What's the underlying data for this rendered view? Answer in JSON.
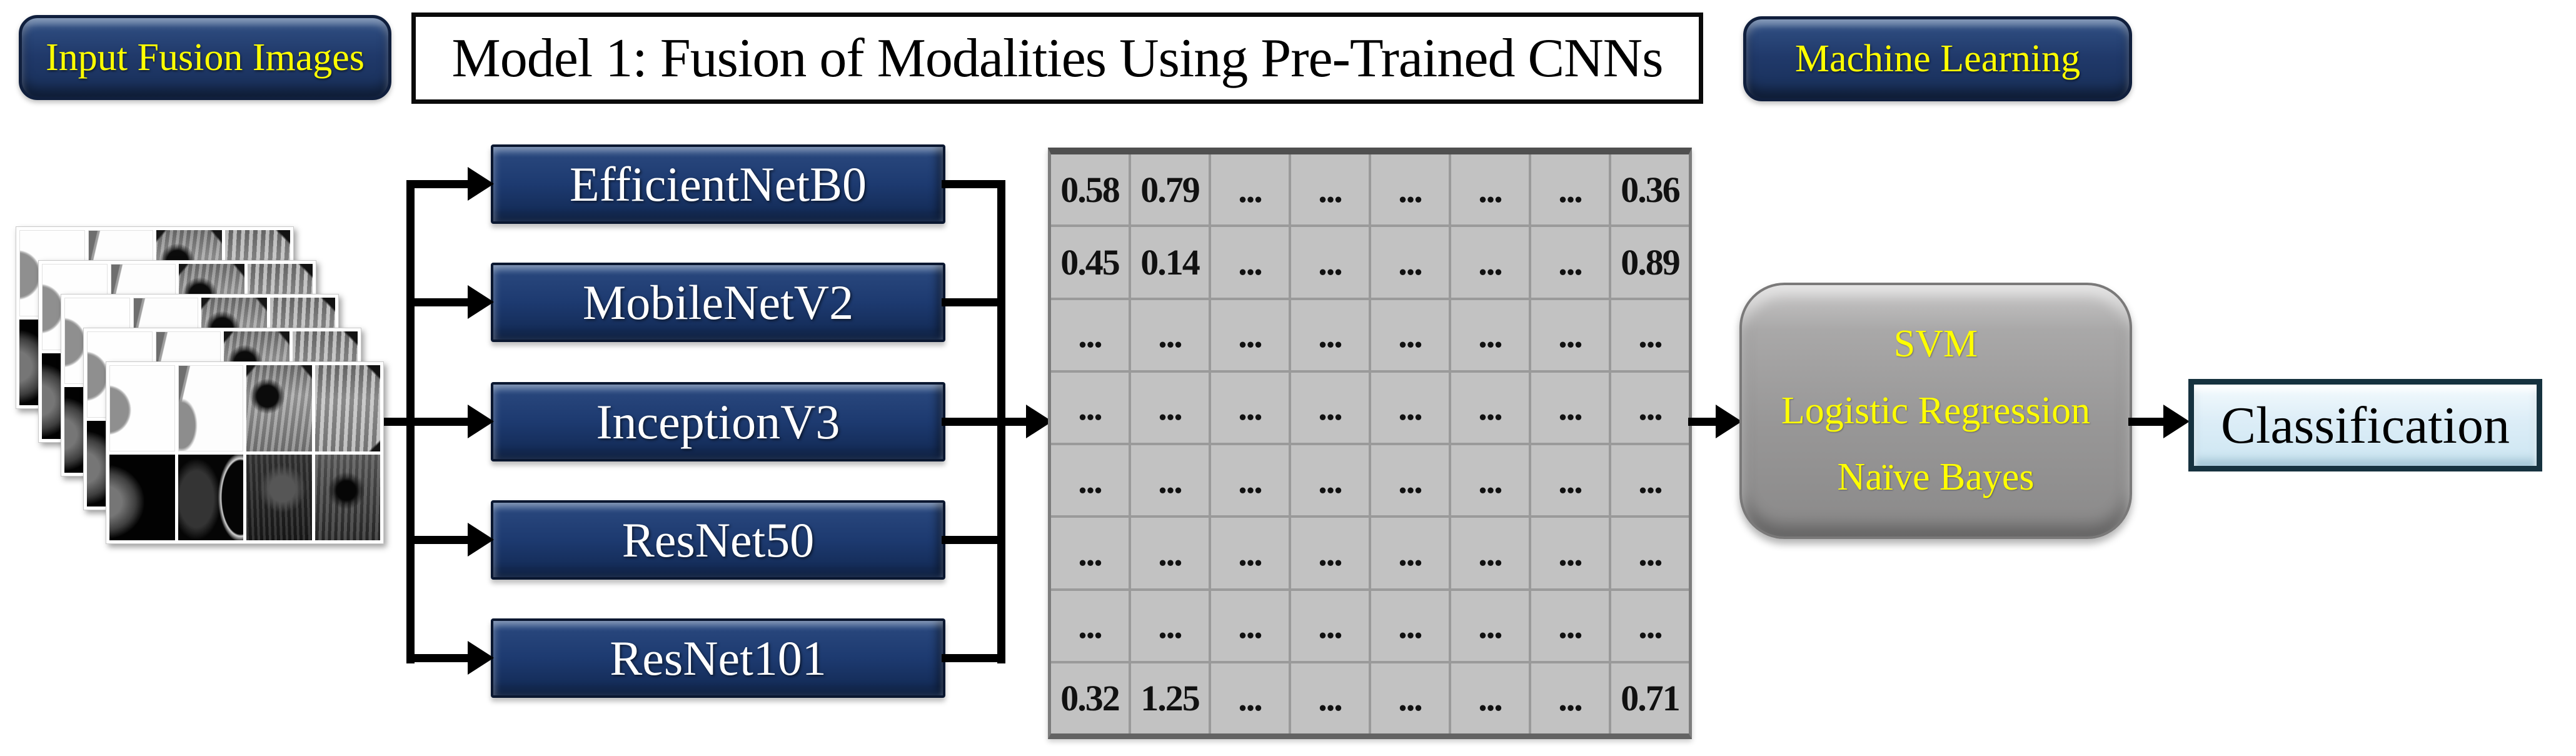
{
  "banner": {
    "input_images_label": "Input Fusion Images",
    "title": "Model 1: Fusion of Modalities Using Pre-Trained CNNs",
    "machine_learning_label": "Machine Learning"
  },
  "cnn_models": [
    "EfficientNetB0",
    "MobileNetV2",
    "InceptionV3",
    "ResNet50",
    "ResNet101"
  ],
  "feature_matrix": {
    "rows": [
      [
        "0.58",
        "0.79",
        "...",
        "...",
        "...",
        "...",
        "...",
        "0.36"
      ],
      [
        "0.45",
        "0.14",
        "...",
        "...",
        "...",
        "...",
        "...",
        "0.89"
      ],
      [
        "...",
        "...",
        "...",
        "...",
        "...",
        "...",
        "...",
        "..."
      ],
      [
        "...",
        "...",
        "...",
        "...",
        "...",
        "...",
        "...",
        "..."
      ],
      [
        "...",
        "...",
        "...",
        "...",
        "...",
        "...",
        "...",
        "..."
      ],
      [
        "...",
        "...",
        "...",
        "...",
        "...",
        "...",
        "...",
        "..."
      ],
      [
        "...",
        "...",
        "...",
        "...",
        "...",
        "...",
        "...",
        "..."
      ],
      [
        "0.32",
        "1.25",
        "...",
        "...",
        "...",
        "...",
        "...",
        "0.71"
      ]
    ]
  },
  "ml_classifiers": [
    "SVM",
    "Logistic Regression",
    "Naïve Bayes"
  ],
  "output_label": "Classification",
  "image_stack": {
    "card_count": 5
  },
  "colors": {
    "navy": "#1f3864",
    "label_yellow": "#ffff00",
    "matrix_bg": "#c2c2c2",
    "matrix_grid": "#9a9a9a",
    "classifier_gray": "#989797",
    "classification_blue": "#dcedf7",
    "connector_black": "#000000"
  }
}
